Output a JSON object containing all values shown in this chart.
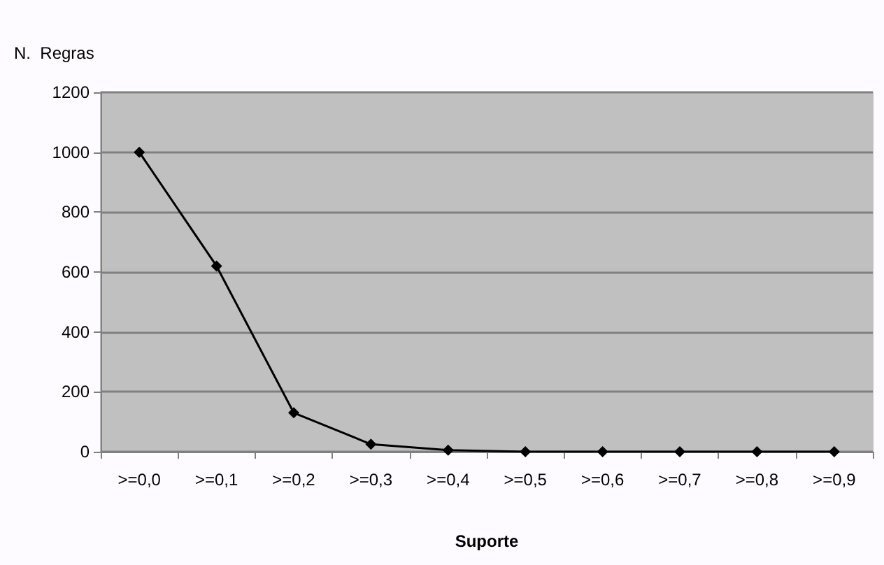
{
  "chart_data": {
    "type": "line",
    "xlabel": "Suporte",
    "ylabel": "N.  Regras",
    "categories": [
      ">=0,0",
      ">=0,1",
      ">=0,2",
      ">=0,3",
      ">=0,4",
      ">=0,5",
      ">=0,6",
      ">=0,7",
      ">=0,8",
      ">=0,9"
    ],
    "values": [
      1000,
      620,
      130,
      25,
      5,
      0,
      0,
      0,
      0,
      0
    ],
    "color": "#000000",
    "ylim": [
      0,
      1200
    ],
    "yticks": [
      0,
      200,
      400,
      600,
      800,
      1000,
      1200
    ],
    "grid": "y",
    "marker": "diamond",
    "line_style": "solid"
  }
}
